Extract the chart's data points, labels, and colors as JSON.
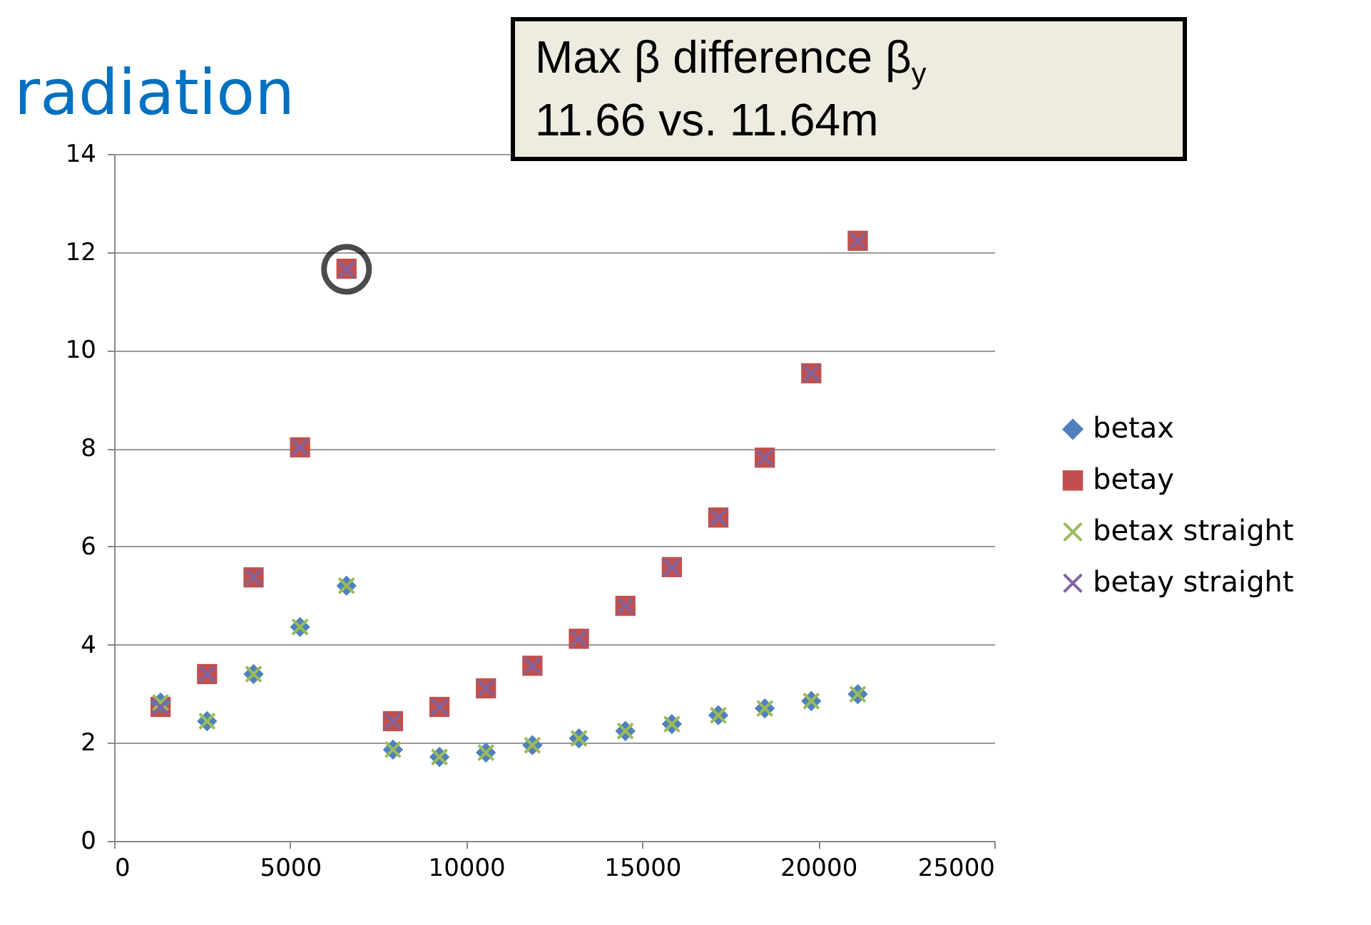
{
  "chart_data": {
    "type": "scatter",
    "title": "radiation",
    "annotations": [
      "Max β difference β$_{y}$\n11.66 vs. 11.64m"
    ],
    "x": [
      1320,
      2640,
      3960,
      5280,
      6600,
      7920,
      9240,
      10560,
      11880,
      13200,
      14520,
      15840,
      17160,
      18480,
      19800,
      21120
    ],
    "series": [
      {
        "name": "betax",
        "color": "#4f81bd",
        "marker": "diamond",
        "values": [
          2.82,
          2.44,
          3.4,
          4.36,
          5.2,
          1.86,
          1.71,
          1.8,
          1.95,
          2.09,
          2.24,
          2.38,
          2.56,
          2.7,
          2.85,
          2.99
        ]
      },
      {
        "name": "betay",
        "color": "#c0504d",
        "marker": "square",
        "values": [
          2.73,
          3.4,
          5.37,
          8.02,
          11.66,
          2.44,
          2.73,
          3.11,
          3.57,
          4.12,
          4.79,
          5.58,
          6.59,
          7.81,
          9.53,
          12.23
        ]
      },
      {
        "name": "betax straight",
        "color": "#9bbb59",
        "marker": "cross",
        "values": [
          2.82,
          2.44,
          3.4,
          4.36,
          5.2,
          1.86,
          1.71,
          1.8,
          1.95,
          2.09,
          2.24,
          2.38,
          2.56,
          2.7,
          2.85,
          2.99
        ]
      },
      {
        "name": "betay straight",
        "color": "#8064a2",
        "marker": "cross",
        "values": [
          2.73,
          3.4,
          5.37,
          8.02,
          11.64,
          2.44,
          2.73,
          3.11,
          3.57,
          4.12,
          4.79,
          5.58,
          6.59,
          7.81,
          9.53,
          12.23
        ]
      }
    ],
    "xlim": [
      0,
      25000
    ],
    "xticks": [
      0,
      5000,
      10000,
      15000,
      20000,
      25000
    ],
    "ylim": [
      0,
      14
    ],
    "yticks": [
      0,
      2,
      4,
      6,
      8,
      10,
      12,
      14
    ],
    "grid": "y",
    "legend": "right"
  }
}
